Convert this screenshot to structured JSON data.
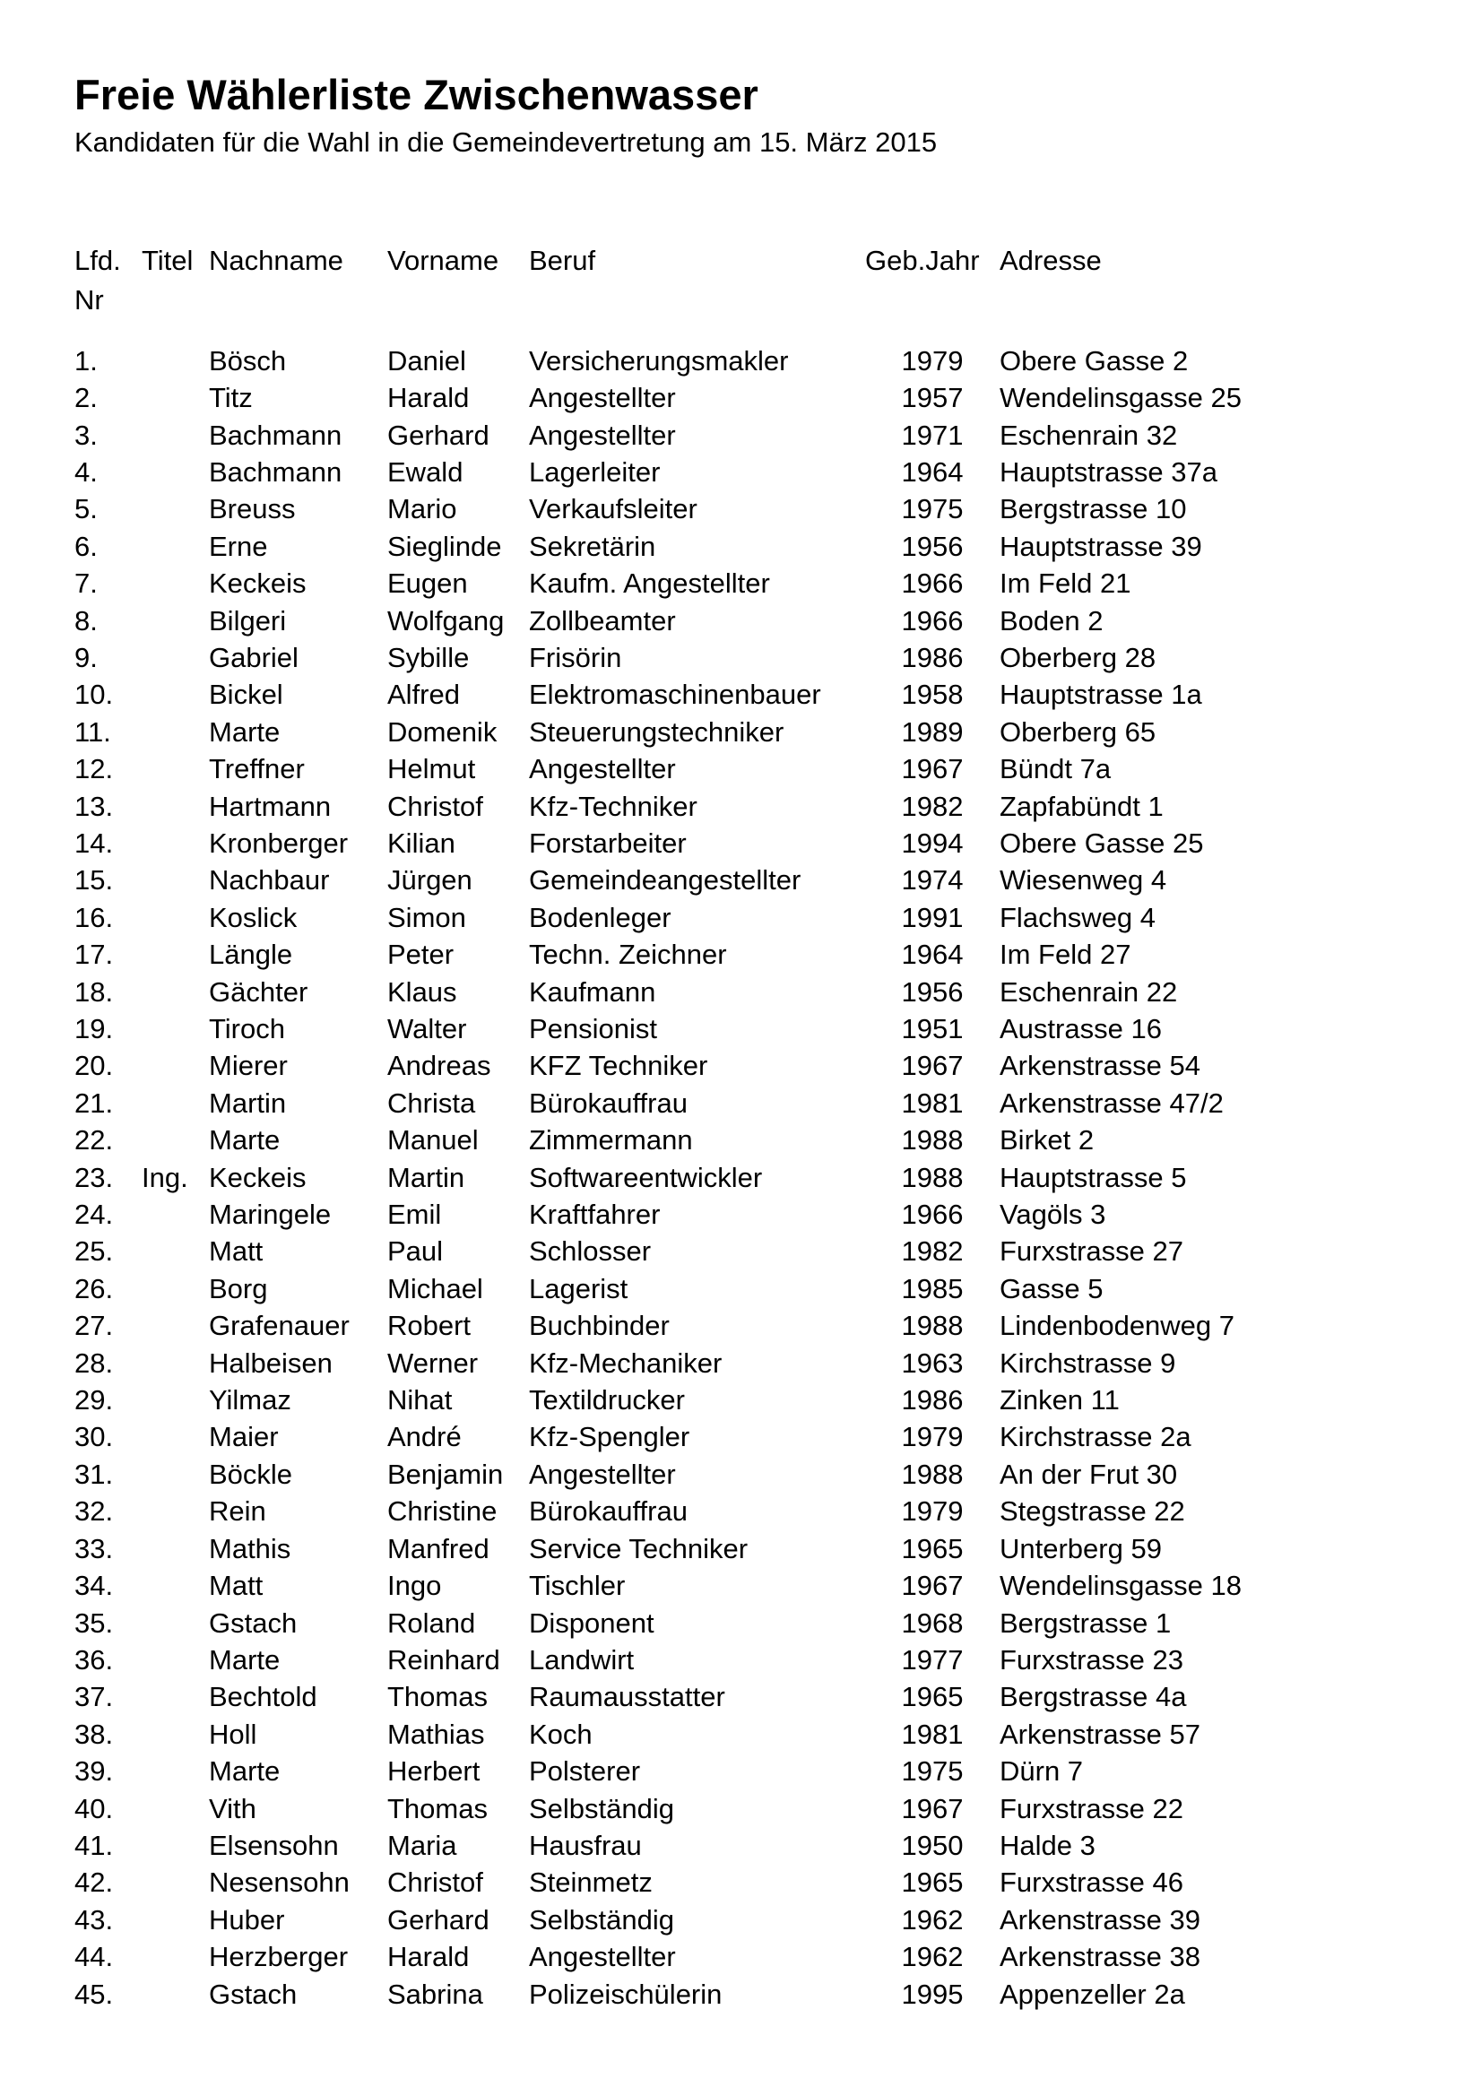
{
  "page": {
    "title": "Freie Wählerliste Zwischenwasser",
    "subtitle": "Kandidaten für die Wahl in die Gemeindevertretung am 15. März 2015"
  },
  "table": {
    "headers": {
      "lfd_line1": "Lfd.",
      "lfd_line2": "Nr",
      "titel": "Titel",
      "nachname": "Nachname",
      "vorname": "Vorname",
      "beruf": "Beruf",
      "gebjahr": "Geb.Jahr",
      "adresse": "Adresse"
    },
    "rows": [
      {
        "nr": "1.",
        "titel": "",
        "nachname": "Bösch",
        "vorname": "Daniel",
        "beruf": "Versicherungsmakler",
        "gebjahr": "1979",
        "adresse": "Obere Gasse 2"
      },
      {
        "nr": "2.",
        "titel": "",
        "nachname": "Titz",
        "vorname": "Harald",
        "beruf": "Angestellter",
        "gebjahr": "1957",
        "adresse": "Wendelinsgasse 25"
      },
      {
        "nr": "3.",
        "titel": "",
        "nachname": "Bachmann",
        "vorname": "Gerhard",
        "beruf": "Angestellter",
        "gebjahr": "1971",
        "adresse": "Eschenrain 32"
      },
      {
        "nr": "4.",
        "titel": "",
        "nachname": "Bachmann",
        "vorname": "Ewald",
        "beruf": "Lagerleiter",
        "gebjahr": "1964",
        "adresse": "Hauptstrasse 37a"
      },
      {
        "nr": "5.",
        "titel": "",
        "nachname": "Breuss",
        "vorname": "Mario",
        "beruf": "Verkaufsleiter",
        "gebjahr": "1975",
        "adresse": "Bergstrasse 10"
      },
      {
        "nr": "6.",
        "titel": "",
        "nachname": "Erne",
        "vorname": "Sieglinde",
        "beruf": "Sekretärin",
        "gebjahr": "1956",
        "adresse": "Hauptstrasse 39"
      },
      {
        "nr": "7.",
        "titel": "",
        "nachname": "Keckeis",
        "vorname": "Eugen",
        "beruf": "Kaufm. Angestellter",
        "gebjahr": "1966",
        "adresse": "Im Feld 21"
      },
      {
        "nr": "8.",
        "titel": "",
        "nachname": "Bilgeri",
        "vorname": "Wolfgang",
        "beruf": "Zollbeamter",
        "gebjahr": "1966",
        "adresse": "Boden 2"
      },
      {
        "nr": "9.",
        "titel": "",
        "nachname": "Gabriel",
        "vorname": "Sybille",
        "beruf": "Frisörin",
        "gebjahr": "1986",
        "adresse": "Oberberg 28"
      },
      {
        "nr": "10.",
        "titel": "",
        "nachname": "Bickel",
        "vorname": "Alfred",
        "beruf": "Elektromaschinenbauer",
        "gebjahr": "1958",
        "adresse": "Hauptstrasse 1a"
      },
      {
        "nr": "11.",
        "titel": "",
        "nachname": "Marte",
        "vorname": "Domenik",
        "beruf": "Steuerungstechniker",
        "gebjahr": "1989",
        "adresse": "Oberberg 65"
      },
      {
        "nr": "12.",
        "titel": "",
        "nachname": "Treffner",
        "vorname": "Helmut",
        "beruf": "Angestellter",
        "gebjahr": "1967",
        "adresse": "Bündt 7a"
      },
      {
        "nr": "13.",
        "titel": "",
        "nachname": "Hartmann",
        "vorname": "Christof",
        "beruf": "Kfz-Techniker",
        "gebjahr": "1982",
        "adresse": "Zapfabündt 1"
      },
      {
        "nr": "14.",
        "titel": "",
        "nachname": "Kronberger",
        "vorname": "Kilian",
        "beruf": "Forstarbeiter",
        "gebjahr": "1994",
        "adresse": "Obere Gasse 25"
      },
      {
        "nr": "15.",
        "titel": "",
        "nachname": "Nachbaur",
        "vorname": "Jürgen",
        "beruf": "Gemeindeangestellter",
        "gebjahr": "1974",
        "adresse": "Wiesenweg 4"
      },
      {
        "nr": "16.",
        "titel": "",
        "nachname": "Koslick",
        "vorname": "Simon",
        "beruf": "Bodenleger",
        "gebjahr": "1991",
        "adresse": "Flachsweg 4"
      },
      {
        "nr": "17.",
        "titel": "",
        "nachname": "Längle",
        "vorname": "Peter",
        "beruf": "Techn. Zeichner",
        "gebjahr": "1964",
        "adresse": "Im Feld 27"
      },
      {
        "nr": "18.",
        "titel": "",
        "nachname": "Gächter",
        "vorname": "Klaus",
        "beruf": "Kaufmann",
        "gebjahr": "1956",
        "adresse": "Eschenrain 22"
      },
      {
        "nr": "19.",
        "titel": "",
        "nachname": "Tiroch",
        "vorname": "Walter",
        "beruf": "Pensionist",
        "gebjahr": "1951",
        "adresse": "Austrasse 16"
      },
      {
        "nr": "20.",
        "titel": "",
        "nachname": "Mierer",
        "vorname": "Andreas",
        "beruf": "KFZ Techniker",
        "gebjahr": "1967",
        "adresse": "Arkenstrasse 54"
      },
      {
        "nr": "21.",
        "titel": "",
        "nachname": "Martin",
        "vorname": "Christa",
        "beruf": "Bürokauffrau",
        "gebjahr": "1981",
        "adresse": "Arkenstrasse 47/2"
      },
      {
        "nr": "22.",
        "titel": "",
        "nachname": "Marte",
        "vorname": "Manuel",
        "beruf": "Zimmermann",
        "gebjahr": "1988",
        "adresse": "Birket 2"
      },
      {
        "nr": "23.",
        "titel": "Ing.",
        "nachname": "Keckeis",
        "vorname": "Martin",
        "beruf": "Softwareentwickler",
        "gebjahr": "1988",
        "adresse": "Hauptstrasse 5"
      },
      {
        "nr": "24.",
        "titel": "",
        "nachname": "Maringele",
        "vorname": "Emil",
        "beruf": "Kraftfahrer",
        "gebjahr": "1966",
        "adresse": "Vagöls 3"
      },
      {
        "nr": "25.",
        "titel": "",
        "nachname": "Matt",
        "vorname": "Paul",
        "beruf": "Schlosser",
        "gebjahr": "1982",
        "adresse": "Furxstrasse 27"
      },
      {
        "nr": "26.",
        "titel": "",
        "nachname": "Borg",
        "vorname": "Michael",
        "beruf": "Lagerist",
        "gebjahr": "1985",
        "adresse": "Gasse 5"
      },
      {
        "nr": "27.",
        "titel": "",
        "nachname": "Grafenauer",
        "vorname": "Robert",
        "beruf": "Buchbinder",
        "gebjahr": "1988",
        "adresse": "Lindenbodenweg 7"
      },
      {
        "nr": "28.",
        "titel": "",
        "nachname": "Halbeisen",
        "vorname": "Werner",
        "beruf": "Kfz-Mechaniker",
        "gebjahr": "1963",
        "adresse": "Kirchstrasse 9"
      },
      {
        "nr": "29.",
        "titel": "",
        "nachname": "Yilmaz",
        "vorname": "Nihat",
        "beruf": "Textildrucker",
        "gebjahr": "1986",
        "adresse": "Zinken 11"
      },
      {
        "nr": "30.",
        "titel": "",
        "nachname": "Maier",
        "vorname": "André",
        "beruf": "Kfz-Spengler",
        "gebjahr": "1979",
        "adresse": "Kirchstrasse 2a"
      },
      {
        "nr": "31.",
        "titel": "",
        "nachname": "Böckle",
        "vorname": "Benjamin",
        "beruf": "Angestellter",
        "gebjahr": "1988",
        "adresse": "An der Frut 30"
      },
      {
        "nr": "32.",
        "titel": "",
        "nachname": "Rein",
        "vorname": "Christine",
        "beruf": "Bürokauffrau",
        "gebjahr": "1979",
        "adresse": "Stegstrasse 22"
      },
      {
        "nr": "33.",
        "titel": "",
        "nachname": "Mathis",
        "vorname": "Manfred",
        "beruf": "Service Techniker",
        "gebjahr": "1965",
        "adresse": "Unterberg 59"
      },
      {
        "nr": "34.",
        "titel": "",
        "nachname": "Matt",
        "vorname": "Ingo",
        "beruf": "Tischler",
        "gebjahr": "1967",
        "adresse": "Wendelinsgasse 18"
      },
      {
        "nr": "35.",
        "titel": "",
        "nachname": "Gstach",
        "vorname": "Roland",
        "beruf": "Disponent",
        "gebjahr": "1968",
        "adresse": "Bergstrasse 1"
      },
      {
        "nr": "36.",
        "titel": "",
        "nachname": "Marte",
        "vorname": "Reinhard",
        "beruf": "Landwirt",
        "gebjahr": "1977",
        "adresse": "Furxstrasse 23"
      },
      {
        "nr": "37.",
        "titel": "",
        "nachname": "Bechtold",
        "vorname": "Thomas",
        "beruf": "Raumausstatter",
        "gebjahr": "1965",
        "adresse": "Bergstrasse 4a"
      },
      {
        "nr": "38.",
        "titel": "",
        "nachname": "Holl",
        "vorname": "Mathias",
        "beruf": "Koch",
        "gebjahr": "1981",
        "adresse": "Arkenstrasse 57"
      },
      {
        "nr": "39.",
        "titel": "",
        "nachname": "Marte",
        "vorname": "Herbert",
        "beruf": "Polsterer",
        "gebjahr": "1975",
        "adresse": "Dürn 7"
      },
      {
        "nr": "40.",
        "titel": "",
        "nachname": "Vith",
        "vorname": "Thomas",
        "beruf": "Selbständig",
        "gebjahr": "1967",
        "adresse": "Furxstrasse 22"
      },
      {
        "nr": "41.",
        "titel": "",
        "nachname": "Elsensohn",
        "vorname": "Maria",
        "beruf": "Hausfrau",
        "gebjahr": "1950",
        "adresse": "Halde 3"
      },
      {
        "nr": "42.",
        "titel": "",
        "nachname": "Nesensohn",
        "vorname": "Christof",
        "beruf": "Steinmetz",
        "gebjahr": "1965",
        "adresse": "Furxstrasse 46"
      },
      {
        "nr": "43.",
        "titel": "",
        "nachname": "Huber",
        "vorname": "Gerhard",
        "beruf": "Selbständig",
        "gebjahr": "1962",
        "adresse": "Arkenstrasse 39"
      },
      {
        "nr": "44.",
        "titel": "",
        "nachname": "Herzberger",
        "vorname": "Harald",
        "beruf": "Angestellter",
        "gebjahr": "1962",
        "adresse": "Arkenstrasse 38"
      },
      {
        "nr": "45.",
        "titel": "",
        "nachname": "Gstach",
        "vorname": "Sabrina",
        "beruf": "Polizeischülerin",
        "gebjahr": "1995",
        "adresse": "Appenzeller 2a"
      }
    ]
  }
}
